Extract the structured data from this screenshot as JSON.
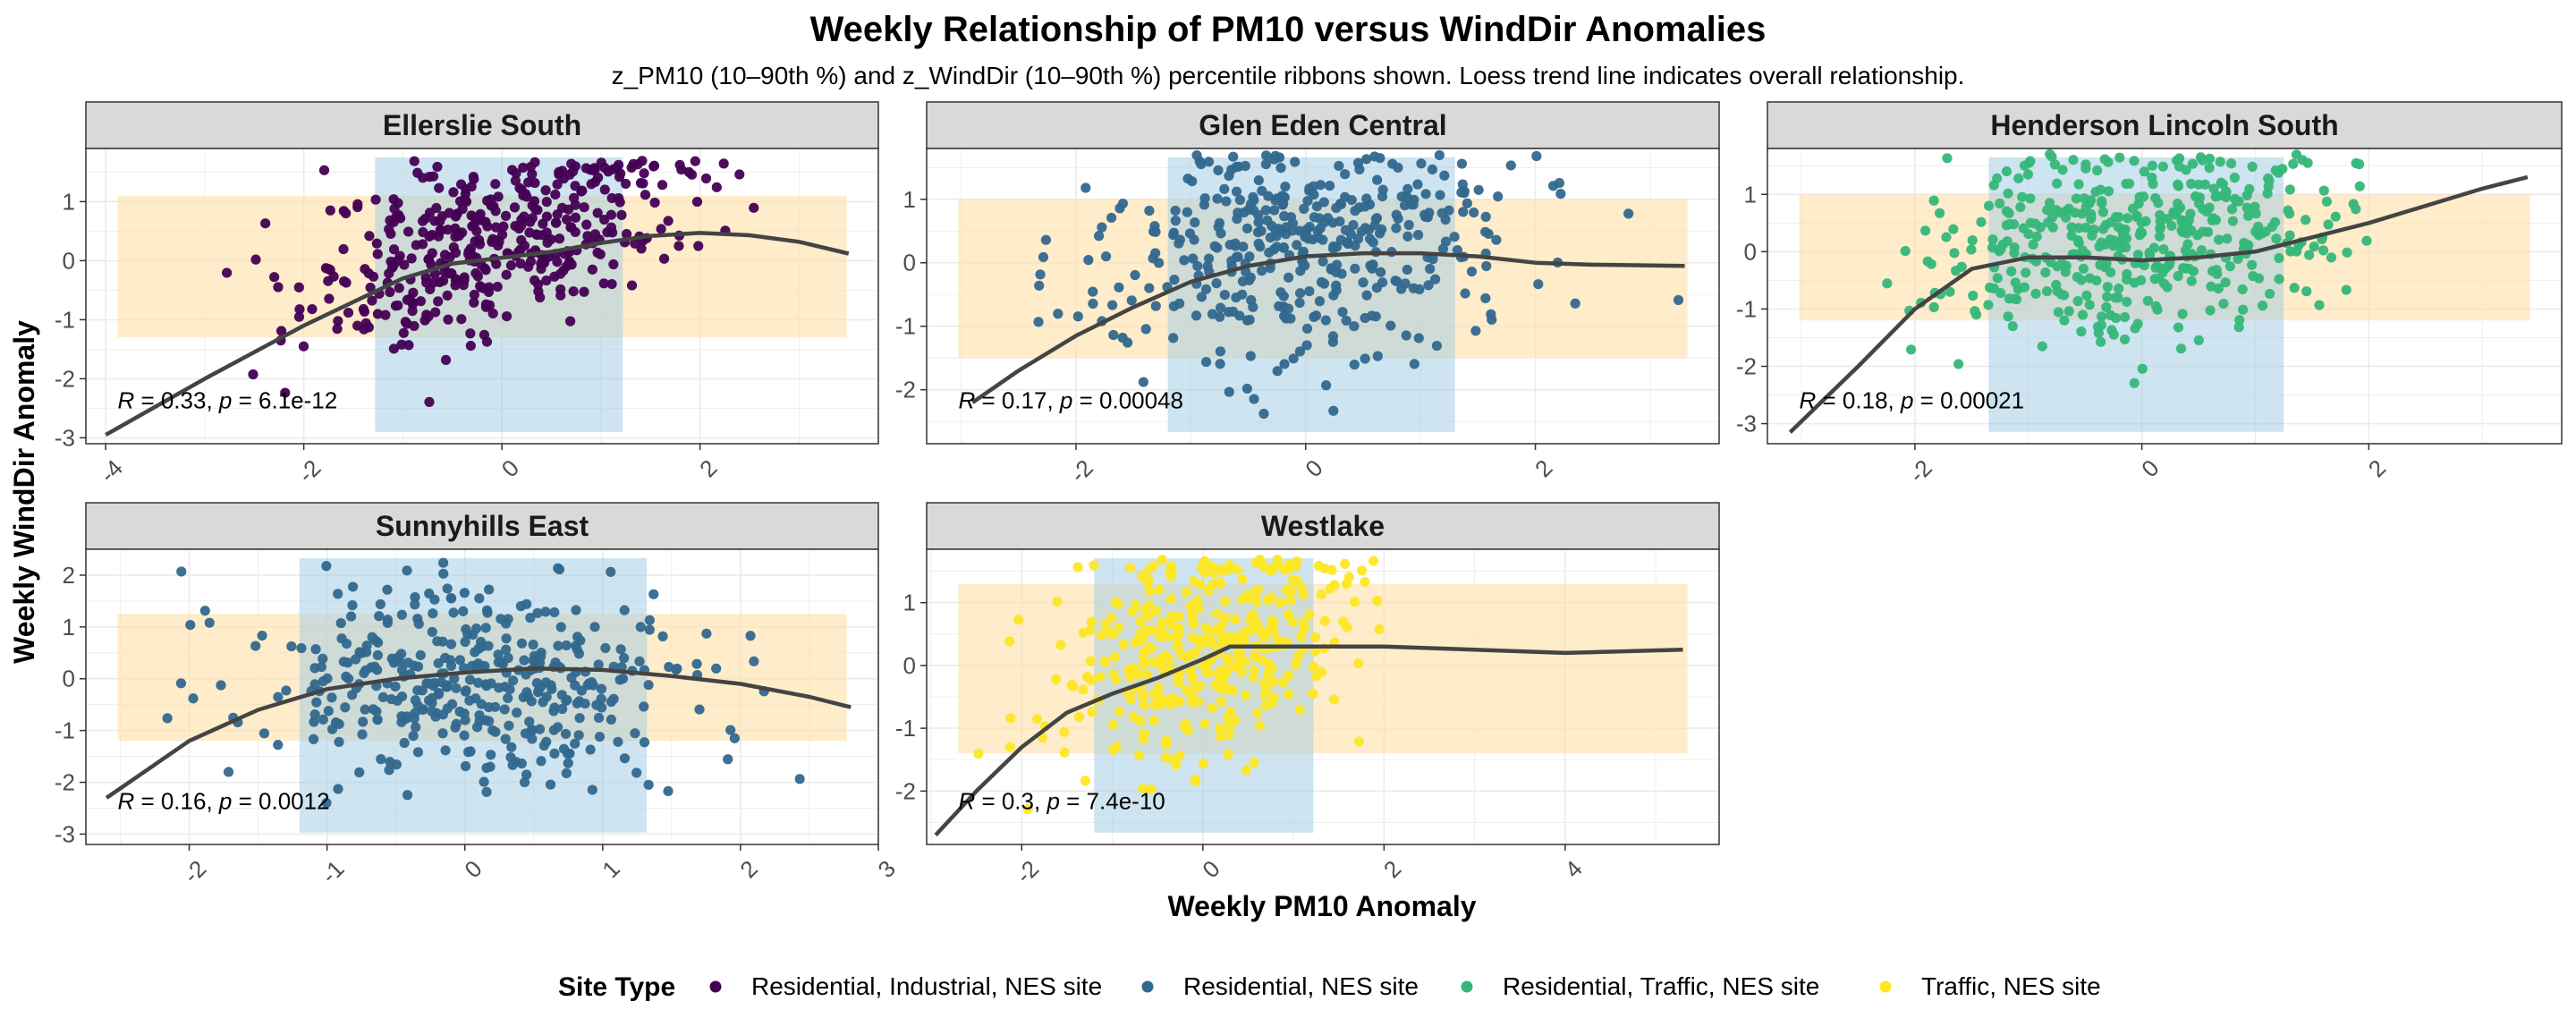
{
  "title": "Weekly Relationship of PM10 versus WindDir Anomalies",
  "subtitle": "z_PM10 (10–90th %) and z_WindDir (10–90th %) percentile ribbons shown. Loess trend line indicates overall relationship.",
  "colors": {
    "Residential, Industrial, NES site": "#440154",
    "Residential, NES site": "#31688e",
    "Residential, Traffic, NES site": "#35b779",
    "Traffic, NES site": "#fde725",
    "ribbon_x": "#9ecae1",
    "ribbon_y": "#fde0a6",
    "trend": "#444444"
  },
  "chart_data": {
    "type": "scatter",
    "title": "Weekly Relationship of PM10 versus WindDir Anomalies",
    "xlabel": "Weekly PM10 Anomaly",
    "ylabel": "Weekly WindDir Anomaly",
    "grid": true,
    "legend_placement": "bottom",
    "legend": {
      "title": "Site Type",
      "entries": [
        "Residential, Industrial, NES site",
        "Residential, NES site",
        "Residential, Traffic, NES site",
        "Traffic, NES site"
      ]
    },
    "panels": [
      {
        "name": "Ellerslie South",
        "site_type": "Residential, Industrial, NES site",
        "xlim": [
          -4.2,
          3.8
        ],
        "ylim": [
          -3.1,
          1.9
        ],
        "xticks": [
          -4,
          -2,
          0,
          2
        ],
        "yticks": [
          -3,
          -2,
          -1,
          0,
          1
        ],
        "ribbon_x": [
          -1.28,
          1.22
        ],
        "ribbon_y": [
          -1.3,
          1.1
        ],
        "annotation": {
          "R": "0.33",
          "p": "6.1e-12"
        },
        "trend": [
          [
            -4.0,
            -2.95
          ],
          [
            -3.0,
            -2.0
          ],
          [
            -2.0,
            -1.1
          ],
          [
            -1.0,
            -0.3
          ],
          [
            -0.5,
            -0.05
          ],
          [
            0.0,
            0.05
          ],
          [
            0.5,
            0.15
          ],
          [
            1.0,
            0.3
          ],
          [
            1.5,
            0.42
          ],
          [
            2.0,
            0.47
          ],
          [
            2.5,
            0.43
          ],
          [
            3.0,
            0.32
          ],
          [
            3.5,
            0.12
          ]
        ],
        "points_seed": 11,
        "points_n": 420,
        "points_x": [
          -0.1,
          0.95,
          -3.9,
          3.4
        ],
        "points_y": [
          0.3,
          0.8,
          -2.8,
          1.7
        ],
        "corr": 0.33,
        "slope": 0.55
      },
      {
        "name": "Glen Eden Central",
        "site_type": "Residential, NES site",
        "xlim": [
          -3.3,
          3.6
        ],
        "ylim": [
          -2.85,
          1.8
        ],
        "xticks": [
          -2,
          0,
          2
        ],
        "yticks": [
          -2,
          -1,
          0,
          1
        ],
        "ribbon_x": [
          -1.2,
          1.3
        ],
        "ribbon_y": [
          -1.5,
          1.0
        ],
        "annotation": {
          "R": "0.17",
          "p": "0.00048"
        },
        "trend": [
          [
            -2.9,
            -2.2
          ],
          [
            -2.5,
            -1.7
          ],
          [
            -2.0,
            -1.15
          ],
          [
            -1.5,
            -0.7
          ],
          [
            -1.0,
            -0.3
          ],
          [
            -0.5,
            -0.05
          ],
          [
            0.0,
            0.1
          ],
          [
            0.5,
            0.15
          ],
          [
            1.0,
            0.15
          ],
          [
            1.5,
            0.1
          ],
          [
            2.0,
            0.0
          ],
          [
            2.5,
            -0.03
          ],
          [
            3.3,
            -0.05
          ]
        ],
        "points_seed": 23,
        "points_n": 400,
        "points_x": [
          0.1,
          0.95,
          -2.9,
          3.3
        ],
        "points_y": [
          0.2,
          0.85,
          -2.7,
          1.7
        ],
        "corr": 0.17,
        "slope": 0.3
      },
      {
        "name": "Henderson Lincoln South",
        "site_type": "Residential, Traffic, NES site",
        "xlim": [
          -3.3,
          3.7
        ],
        "ylim": [
          -3.35,
          1.8
        ],
        "xticks": [
          -2,
          0,
          2
        ],
        "yticks": [
          -3,
          -2,
          -1,
          0,
          1
        ],
        "ribbon_x": [
          -1.35,
          1.25
        ],
        "ribbon_y": [
          -1.2,
          1.0
        ],
        "annotation": {
          "R": "0.18",
          "p": "0.00021"
        },
        "trend": [
          [
            -3.1,
            -3.15
          ],
          [
            -2.5,
            -2.0
          ],
          [
            -2.0,
            -1.0
          ],
          [
            -1.5,
            -0.3
          ],
          [
            -1.0,
            -0.1
          ],
          [
            -0.5,
            -0.1
          ],
          [
            0.0,
            -0.15
          ],
          [
            0.5,
            -0.1
          ],
          [
            1.0,
            0.0
          ],
          [
            1.5,
            0.25
          ],
          [
            2.0,
            0.5
          ],
          [
            2.5,
            0.8
          ],
          [
            3.0,
            1.1
          ],
          [
            3.4,
            1.3
          ]
        ],
        "points_seed": 37,
        "points_n": 430,
        "points_x": [
          0.0,
          0.9,
          -3.1,
          3.4
        ],
        "points_y": [
          0.2,
          0.8,
          -3.2,
          1.7
        ],
        "corr": 0.18,
        "slope": 0.35
      },
      {
        "name": "Sunnyhills East",
        "site_type": "Residential, NES site",
        "xlim": [
          -2.75,
          3.0
        ],
        "ylim": [
          -3.2,
          2.5
        ],
        "xticks": [
          -2,
          -1,
          0,
          1,
          2,
          3
        ],
        "yticks": [
          -3,
          -2,
          -1,
          0,
          1,
          2
        ],
        "ribbon_x": [
          -1.2,
          1.32
        ],
        "ribbon_y": [
          -1.2,
          1.25
        ],
        "annotation": {
          "R": "0.16",
          "p": "0.0012"
        },
        "trend": [
          [
            -2.6,
            -2.3
          ],
          [
            -2.0,
            -1.2
          ],
          [
            -1.5,
            -0.6
          ],
          [
            -1.0,
            -0.2
          ],
          [
            -0.5,
            0.0
          ],
          [
            0.0,
            0.12
          ],
          [
            0.5,
            0.2
          ],
          [
            1.0,
            0.17
          ],
          [
            1.5,
            0.05
          ],
          [
            2.0,
            -0.1
          ],
          [
            2.5,
            -0.35
          ],
          [
            2.8,
            -0.55
          ]
        ],
        "points_seed": 53,
        "points_n": 400,
        "points_x": [
          0.1,
          0.85,
          -2.6,
          2.8
        ],
        "points_y": [
          0.0,
          0.95,
          -3.0,
          2.3
        ],
        "corr": 0.16,
        "slope": 0.3
      },
      {
        "name": "Westlake",
        "site_type": "Traffic, NES site",
        "xlim": [
          -3.05,
          5.7
        ],
        "ylim": [
          -2.85,
          1.85
        ],
        "xticks": [
          -2,
          0,
          2,
          4
        ],
        "yticks": [
          -2,
          -1,
          0,
          1
        ],
        "ribbon_x": [
          -1.2,
          1.22
        ],
        "ribbon_y": [
          -1.4,
          1.3
        ],
        "annotation": {
          "R": "0.3",
          "p": "7.4e-10"
        },
        "trend": [
          [
            -2.95,
            -2.7
          ],
          [
            -2.5,
            -2.0
          ],
          [
            -2.0,
            -1.3
          ],
          [
            -1.5,
            -0.75
          ],
          [
            -1.0,
            -0.45
          ],
          [
            -0.5,
            -0.2
          ],
          [
            0.0,
            0.1
          ],
          [
            0.3,
            0.3
          ],
          [
            1.0,
            0.3
          ],
          [
            2.0,
            0.3
          ],
          [
            3.0,
            0.25
          ],
          [
            4.0,
            0.2
          ],
          [
            5.3,
            0.25
          ]
        ],
        "points_seed": 71,
        "points_n": 380,
        "points_x": [
          0.0,
          0.8,
          -2.9,
          5.3
        ],
        "points_y": [
          0.3,
          0.85,
          -2.7,
          1.7
        ],
        "corr": 0.3,
        "slope": 0.5
      }
    ]
  }
}
